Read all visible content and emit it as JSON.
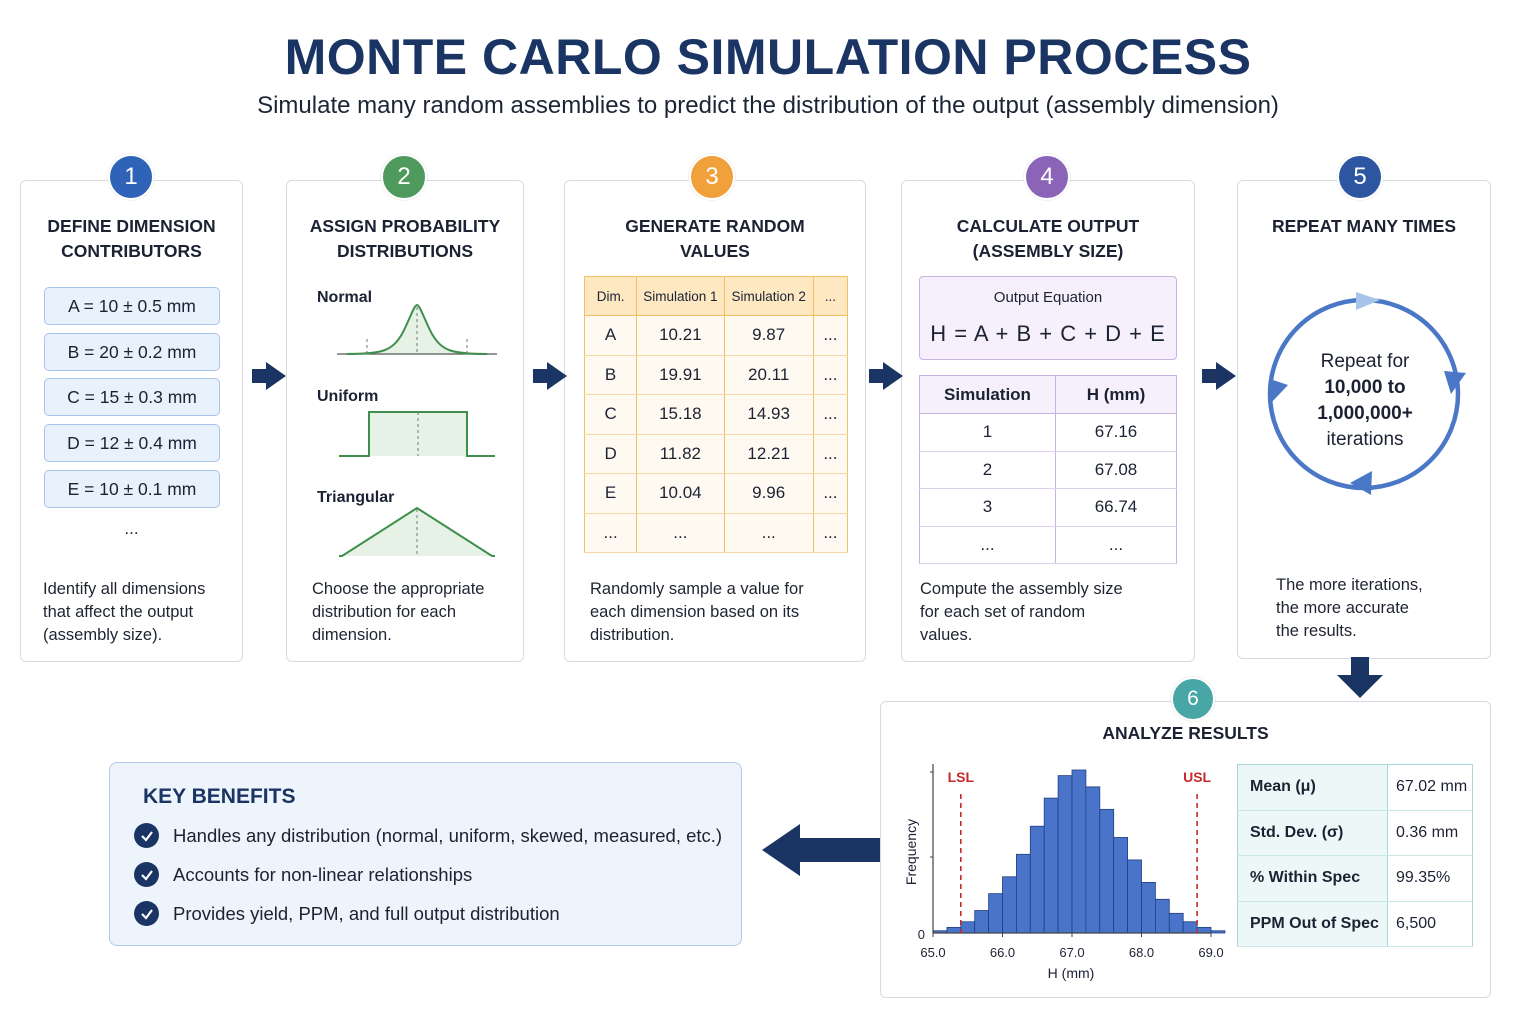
{
  "header": {
    "title": "MONTE CARLO SIMULATION PROCESS",
    "subtitle": "Simulate many random assemblies to predict the distribution of the output (assembly dimension)"
  },
  "colors": {
    "step1": "#2e63b8",
    "step2": "#4d9a5c",
    "step3": "#f0a13b",
    "step4": "#8b64b8",
    "step5": "#2c57a0",
    "step6": "#48a6a6",
    "navy": "#1a3563",
    "histogram": "#4a74c9",
    "spec_limit": "#c42a2a"
  },
  "steps": [
    {
      "number": "1",
      "title_line1": "DEFINE DIMENSION",
      "title_line2": "CONTRIBUTORS",
      "items": [
        "A = 10 ± 0.5 mm",
        "B = 20 ± 0.2 mm",
        "C = 15 ± 0.3 mm",
        "D = 12 ± 0.4 mm",
        "E = 10 ± 0.1 mm"
      ],
      "more": "...",
      "desc_line1": "Identify all dimensions",
      "desc_line2": "that affect the output",
      "desc_line3": "(assembly size)."
    },
    {
      "number": "2",
      "title_line1": "ASSIGN PROBABILITY",
      "title_line2": "DISTRIBUTIONS",
      "distributions": [
        "Normal",
        "Uniform",
        "Triangular"
      ],
      "desc_line1": "Choose the appropriate",
      "desc_line2": "distribution for each",
      "desc_line3": "dimension."
    },
    {
      "number": "3",
      "title_line1": "GENERATE RANDOM",
      "title_line2": "VALUES",
      "table_headers": [
        "Dim.",
        "Simulation 1",
        "Simulation 2",
        "..."
      ],
      "table_rows": [
        [
          "A",
          "10.21",
          "9.87",
          "..."
        ],
        [
          "B",
          "19.91",
          "20.11",
          "..."
        ],
        [
          "C",
          "15.18",
          "14.93",
          "..."
        ],
        [
          "D",
          "11.82",
          "12.21",
          "..."
        ],
        [
          "E",
          "10.04",
          "9.96",
          "..."
        ],
        [
          "...",
          "...",
          "...",
          "..."
        ]
      ],
      "desc_line1": "Randomly sample a value for",
      "desc_line2": "each dimension based on its",
      "desc_line3": "distribution."
    },
    {
      "number": "4",
      "title_line1": "CALCULATE OUTPUT",
      "title_line2": "(ASSEMBLY SIZE)",
      "equation_label": "Output Equation",
      "equation": "H = A + B + C + D + E",
      "table_headers": [
        "Simulation",
        "H (mm)"
      ],
      "table_rows": [
        [
          "1",
          "67.16"
        ],
        [
          "2",
          "67.08"
        ],
        [
          "3",
          "66.74"
        ],
        [
          "...",
          "..."
        ]
      ],
      "desc_line1": "Compute the assembly size",
      "desc_line2": "for each set of random",
      "desc_line3": "values."
    },
    {
      "number": "5",
      "title_line1": "REPEAT MANY TIMES",
      "repeat_line1": "Repeat for",
      "repeat_line2": "10,000 to",
      "repeat_line3": "1,000,000+",
      "repeat_line4": "iterations",
      "desc_line1": "The more iterations,",
      "desc_line2": "the more accurate",
      "desc_line3": "the results."
    },
    {
      "number": "6",
      "title_line1": "ANALYZE RESULTS",
      "stats": [
        {
          "label": "Mean (μ)",
          "value": "67.02 mm"
        },
        {
          "label": "Std. Dev. (σ)",
          "value": "0.36 mm"
        },
        {
          "label": "% Within Spec",
          "value": "99.35%"
        },
        {
          "label": "PPM Out of Spec",
          "value": "6,500"
        }
      ]
    }
  ],
  "chart_data": {
    "type": "bar",
    "xlabel": "H (mm)",
    "ylabel": "Frequency",
    "xlim": [
      65.0,
      69.0
    ],
    "xticks": [
      "65.0",
      "66.0",
      "67.0",
      "68.0",
      "69.0"
    ],
    "yticks": [
      "0"
    ],
    "bin_start": 65.0,
    "bin_width": 0.2,
    "values": [
      0.4,
      1,
      2,
      4,
      7,
      10,
      14,
      19,
      24,
      28,
      29,
      26,
      22,
      17,
      13,
      9,
      6,
      3.5,
      2,
      1,
      0.4
    ],
    "lsl": {
      "label": "LSL",
      "value": 65.4
    },
    "usl": {
      "label": "USL",
      "value": 68.8
    }
  },
  "benefits": {
    "title": "KEY BENEFITS",
    "items": [
      "Handles any distribution (normal, uniform, skewed, measured, etc.)",
      "Accounts for non-linear relationships",
      "Provides yield, PPM, and full output distribution"
    ]
  }
}
